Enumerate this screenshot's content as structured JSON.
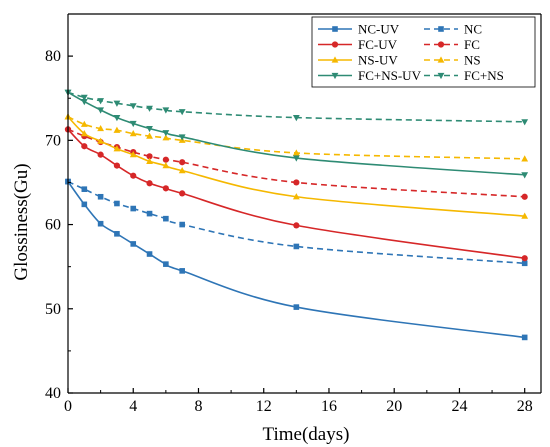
{
  "chart_data": {
    "type": "line",
    "xlabel": "Time(days)",
    "ylabel": "Glossiness(Gu)",
    "xlim": [
      0,
      29
    ],
    "ylim": [
      40,
      85
    ],
    "xticks": [
      0,
      4,
      8,
      12,
      16,
      20,
      24,
      28
    ],
    "yticks": [
      40,
      50,
      60,
      70,
      80
    ],
    "grid": false,
    "legend_position": "top-right",
    "series": [
      {
        "name": "NC-UV",
        "color": "#2E75B6",
        "dashed": false,
        "marker": "square",
        "x": [
          0,
          1,
          2,
          3,
          4,
          5,
          6,
          7,
          14,
          28
        ],
        "y": [
          65.1,
          62.4,
          60.1,
          58.9,
          57.7,
          56.5,
          55.3,
          54.5,
          50.2,
          46.6
        ]
      },
      {
        "name": "NC",
        "color": "#2E75B6",
        "dashed": true,
        "marker": "square",
        "x": [
          0,
          1,
          2,
          3,
          4,
          5,
          6,
          7,
          14,
          28
        ],
        "y": [
          65.1,
          64.2,
          63.3,
          62.5,
          61.9,
          61.3,
          60.7,
          60.0,
          57.4,
          55.4
        ]
      },
      {
        "name": "FC-UV",
        "color": "#D62728",
        "dashed": false,
        "marker": "circle",
        "x": [
          0,
          1,
          2,
          3,
          4,
          5,
          6,
          7,
          14,
          28
        ],
        "y": [
          71.3,
          69.3,
          68.3,
          67.0,
          65.8,
          64.9,
          64.3,
          63.7,
          59.9,
          56.0
        ]
      },
      {
        "name": "FC",
        "color": "#D62728",
        "dashed": true,
        "marker": "circle",
        "x": [
          0,
          1,
          2,
          3,
          4,
          5,
          6,
          7,
          14,
          28
        ],
        "y": [
          71.3,
          70.5,
          69.8,
          69.2,
          68.6,
          68.1,
          67.7,
          67.4,
          65.0,
          63.3
        ]
      },
      {
        "name": "NS-UV",
        "color": "#F5B800",
        "dashed": false,
        "marker": "triangle-up",
        "x": [
          0,
          1,
          2,
          3,
          4,
          5,
          6,
          7,
          14,
          28
        ],
        "y": [
          72.8,
          70.8,
          69.9,
          69.0,
          68.3,
          67.5,
          67.0,
          66.4,
          63.3,
          61.0
        ]
      },
      {
        "name": "NS",
        "color": "#F5B800",
        "dashed": true,
        "marker": "triangle-up",
        "x": [
          0,
          1,
          2,
          3,
          4,
          5,
          6,
          7,
          14,
          28
        ],
        "y": [
          72.8,
          71.9,
          71.4,
          71.2,
          70.8,
          70.5,
          70.3,
          70.0,
          68.5,
          67.8
        ]
      },
      {
        "name": "FC+NS-UV",
        "color": "#2E8B74",
        "dashed": false,
        "marker": "triangle-down",
        "x": [
          0,
          1,
          2,
          3,
          4,
          5,
          6,
          7,
          14,
          28
        ],
        "y": [
          75.7,
          74.6,
          73.6,
          72.7,
          72.0,
          71.4,
          70.9,
          70.4,
          67.9,
          65.9
        ]
      },
      {
        "name": "FC+NS",
        "color": "#2E8B74",
        "dashed": true,
        "marker": "triangle-down",
        "x": [
          0,
          1,
          2,
          3,
          4,
          5,
          6,
          7,
          14,
          28
        ],
        "y": [
          75.7,
          75.1,
          74.7,
          74.4,
          74.1,
          73.8,
          73.6,
          73.4,
          72.7,
          72.2
        ]
      }
    ]
  }
}
